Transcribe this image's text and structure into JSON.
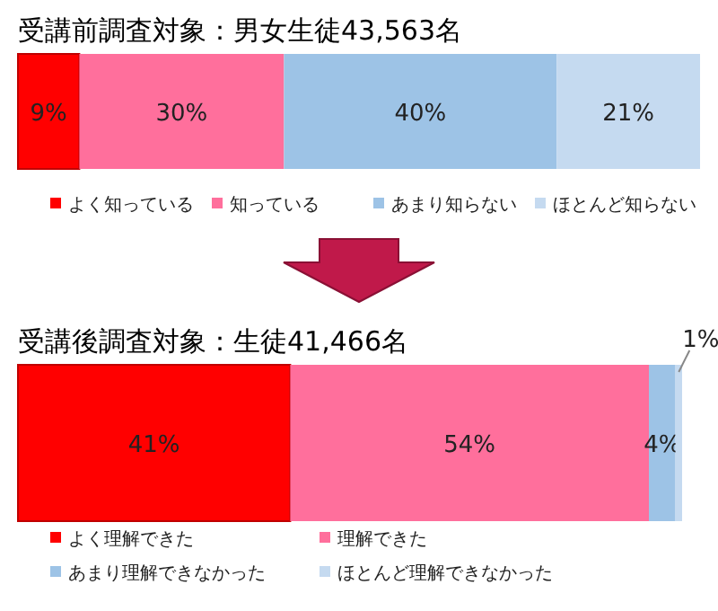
{
  "chart_data": [
    {
      "type": "bar",
      "orientation": "horizontal",
      "stacked": true,
      "title": "受講前調査対象：男女生徒43,563名",
      "categories": [
        null
      ],
      "legend": "bottom",
      "series": [
        {
          "name": "よく知っている",
          "color": "#ff0000",
          "values": [
            9
          ],
          "value_labels": [
            "9%"
          ]
        },
        {
          "name": "知っている",
          "color": "#ff6f9c",
          "values": [
            30
          ],
          "value_labels": [
            "30%"
          ]
        },
        {
          "name": "あまり知らない",
          "color": "#9dc3e6",
          "values": [
            40
          ],
          "value_labels": [
            "40%"
          ]
        },
        {
          "name": "ほとんど知らない",
          "color": "#c5daf0",
          "values": [
            21
          ],
          "value_labels": [
            "21%"
          ]
        }
      ]
    },
    {
      "type": "bar",
      "orientation": "horizontal",
      "stacked": true,
      "title": "受講後調査対象：生徒41,466名",
      "categories": [
        null
      ],
      "legend": "bottom",
      "series": [
        {
          "name": "よく理解できた",
          "color": "#ff0000",
          "values": [
            41
          ],
          "value_labels": [
            "41%"
          ]
        },
        {
          "name": "理解できた",
          "color": "#ff6f9c",
          "values": [
            54
          ],
          "value_labels": [
            "54%"
          ]
        },
        {
          "name": "あまり理解できなかった",
          "color": "#9dc3e6",
          "values": [
            4
          ],
          "value_labels": [
            "4%"
          ]
        },
        {
          "name": "ほとんど理解できなかった",
          "color": "#c5daf0",
          "values": [
            1
          ],
          "value_labels": [
            "1%"
          ]
        }
      ]
    }
  ]
}
